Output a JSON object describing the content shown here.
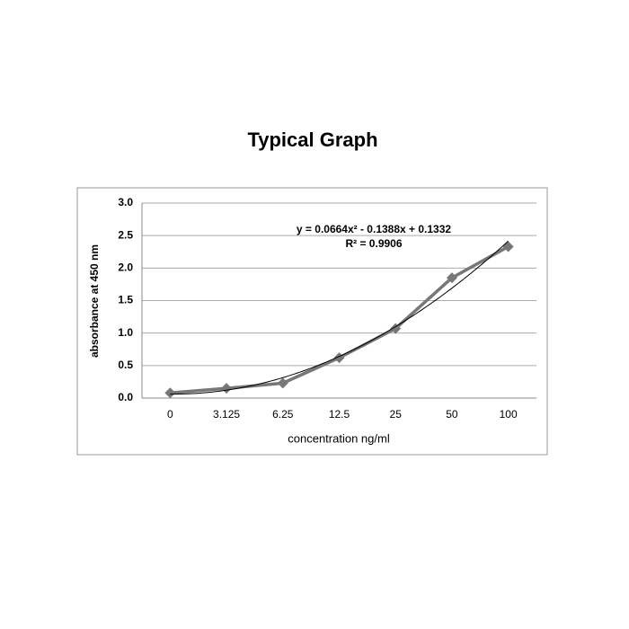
{
  "chart_data": {
    "type": "line",
    "title": "Typical Graph",
    "x_label": "concentration ng/ml",
    "y_label": "absorbance at 450 nm",
    "categories": [
      "0",
      "3.125",
      "6.25",
      "12.5",
      "25",
      "50",
      "100"
    ],
    "series": [
      {
        "name": "absorbance",
        "color": "#777777",
        "values": [
          0.08,
          0.15,
          0.23,
          0.62,
          1.07,
          1.85,
          2.33
        ]
      }
    ],
    "trendline": {
      "type": "polynomial",
      "coefficients": [
        0.0664,
        -0.1388,
        0.1332
      ],
      "color": "#000000",
      "equation": "y = 0.0664x² - 0.1388x + 0.1332",
      "r2": "R² = 0.9906"
    },
    "ylim": [
      0,
      3
    ],
    "yticks": [
      {
        "value": 0,
        "label": "0.0"
      },
      {
        "value": 0.5,
        "label": "0.5"
      },
      {
        "value": 1,
        "label": "1.0"
      },
      {
        "value": 1.5,
        "label": "1.5"
      },
      {
        "value": 2,
        "label": "2.0"
      },
      {
        "value": 2.5,
        "label": "2.5"
      },
      {
        "value": 3,
        "label": "3.0"
      }
    ],
    "grid": true
  }
}
